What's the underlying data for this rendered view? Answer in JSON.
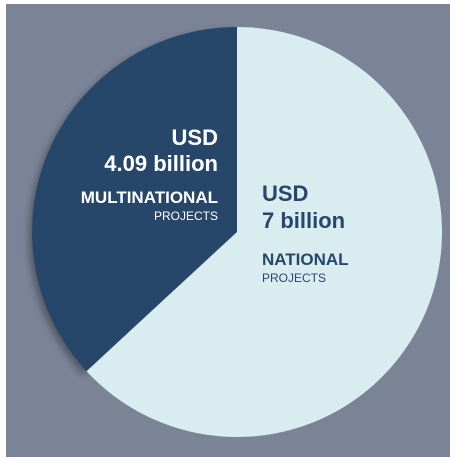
{
  "chart_data": {
    "type": "pie",
    "unit": "USD billion",
    "slices": [
      {
        "value": 4.09,
        "currency": "USD",
        "amount_label": "4.09 billion",
        "category_main": "MULTINATIONAL",
        "category_sub": "PROJECTS",
        "color": "#26476a"
      },
      {
        "value": 7,
        "currency": "USD",
        "amount_label": "7 billion",
        "category_main": "NATIONAL",
        "category_sub": "PROJECTS",
        "color": "#d9ecf0"
      }
    ],
    "background_color": "#7b8497",
    "frame_color": "#ffffff"
  }
}
